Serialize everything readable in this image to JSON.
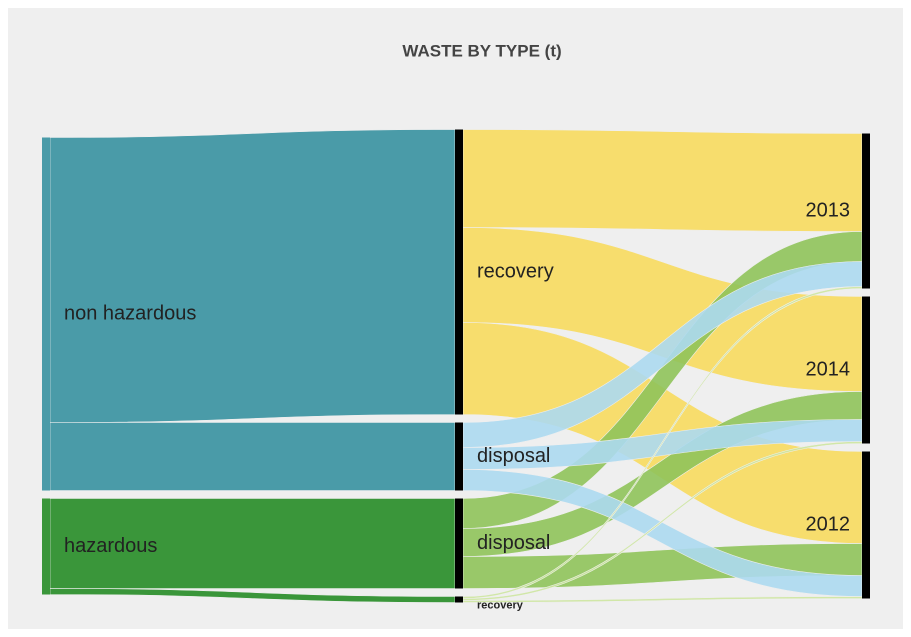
{
  "chart_data": {
    "type": "sankey",
    "title": "WASTE BY TYPE  (t)",
    "nodes": [
      {
        "name": "non hazardous",
        "color": "#4a9ba8"
      },
      {
        "name": "hazardous",
        "color": "#3a963a"
      },
      {
        "name": "recovery",
        "color": "#000000"
      },
      {
        "name": "disposal",
        "color": "#000000"
      },
      {
        "name": "disposal",
        "color": "#000000"
      },
      {
        "name": "recovery",
        "color": "#000000"
      },
      {
        "name": "2013",
        "color": "#000000"
      },
      {
        "name": "2014",
        "color": "#000000"
      },
      {
        "name": "2012",
        "color": "#000000"
      }
    ],
    "links": [
      {
        "source": 0,
        "target": 2,
        "value": 285,
        "color": "#4a9ba8"
      },
      {
        "source": 0,
        "target": 3,
        "value": 68,
        "color": "#4a9ba8"
      },
      {
        "source": 1,
        "target": 4,
        "value": 90,
        "color": "#3a963a"
      },
      {
        "source": 1,
        "target": 5,
        "value": 6,
        "color": "#3a963a"
      },
      {
        "source": 2,
        "target": 6,
        "value": 98,
        "color": "#f7da5e"
      },
      {
        "source": 2,
        "target": 7,
        "value": 95,
        "color": "#f7da5e"
      },
      {
        "source": 2,
        "target": 8,
        "value": 92,
        "color": "#f7da5e"
      },
      {
        "source": 4,
        "target": 6,
        "value": 30,
        "color": "#8fc35a"
      },
      {
        "source": 4,
        "target": 7,
        "value": 28,
        "color": "#8fc35a"
      },
      {
        "source": 4,
        "target": 8,
        "value": 32,
        "color": "#8fc35a"
      },
      {
        "source": 3,
        "target": 6,
        "value": 25,
        "color": "#acd9ef"
      },
      {
        "source": 3,
        "target": 7,
        "value": 22,
        "color": "#acd9ef"
      },
      {
        "source": 3,
        "target": 8,
        "value": 21,
        "color": "#acd9ef"
      },
      {
        "source": 5,
        "target": 6,
        "value": 2,
        "color": "#cde6a0"
      },
      {
        "source": 5,
        "target": 7,
        "value": 2,
        "color": "#cde6a0"
      },
      {
        "source": 5,
        "target": 8,
        "value": 2,
        "color": "#cde6a0"
      }
    ]
  }
}
